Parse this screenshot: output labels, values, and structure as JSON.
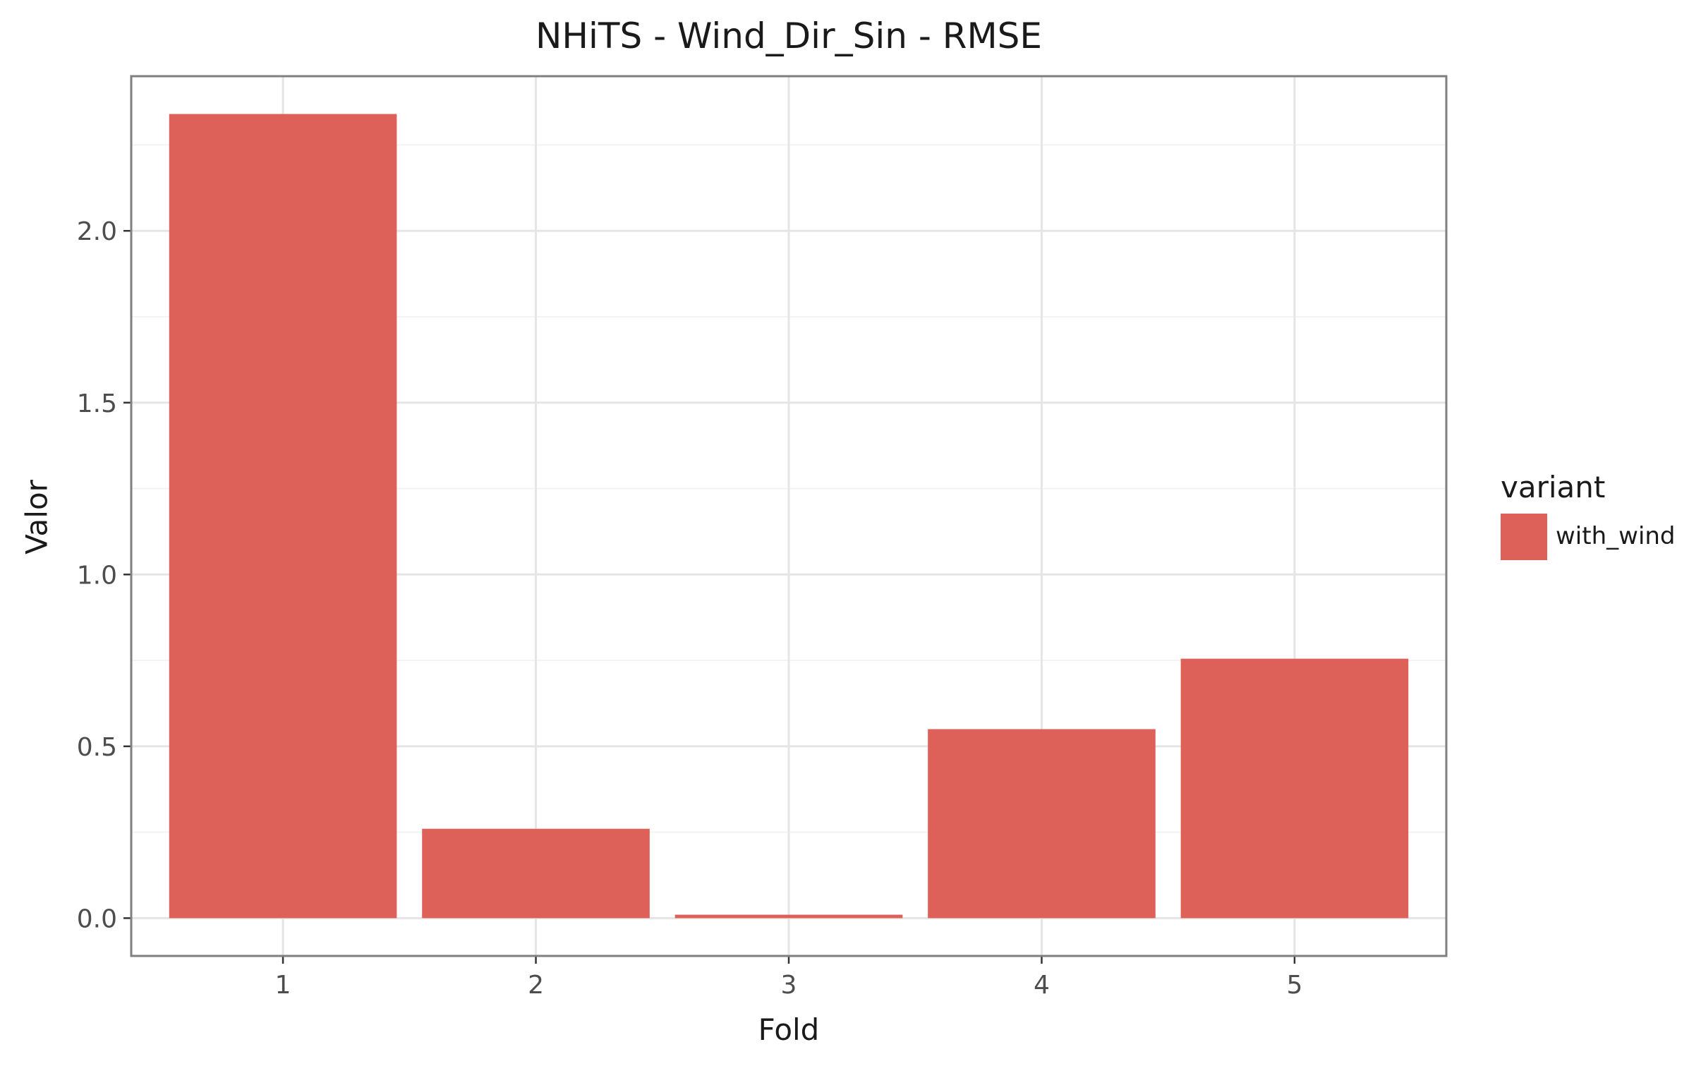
{
  "chart_data": {
    "type": "bar",
    "title": "NHiTS - Wind_Dir_Sin - RMSE",
    "xlabel": "Fold",
    "ylabel": "Valor",
    "categories": [
      "1",
      "2",
      "3",
      "4",
      "5"
    ],
    "series": [
      {
        "name": "with_wind",
        "values": [
          2.34,
          0.26,
          0.01,
          0.55,
          0.755
        ]
      }
    ],
    "ylim": [
      -0.11,
      2.45
    ],
    "yticks": [
      0.0,
      0.5,
      1.0,
      1.5,
      2.0
    ],
    "ytick_labels": [
      "0.0",
      "0.5",
      "1.0",
      "1.5",
      "2.0"
    ],
    "grid": true,
    "legend": {
      "title": "variant",
      "position": "right"
    },
    "colors": {
      "bar": "#DD6159",
      "panel_border": "#7f7f7f",
      "grid_major": "#e5e5e5",
      "grid_minor": "#f3f3f3",
      "tick_text": "#4d4d4d"
    }
  }
}
